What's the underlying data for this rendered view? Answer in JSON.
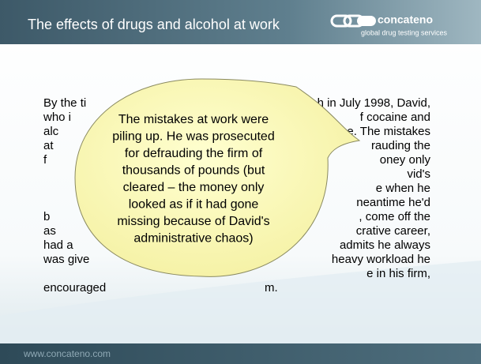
{
  "header": {
    "title": "The effects of drugs and alcohol at work",
    "logo": {
      "name": "concateno",
      "tagline": "global drug testing services"
    }
  },
  "body": {
    "lines": [
      {
        "left": "By the ti",
        "right": "h in July 1998, David,"
      },
      {
        "left": "who i",
        "right": "f cocaine and"
      },
      {
        "left": "alc",
        "right": "e. The mistakes"
      },
      {
        "left": "at",
        "right": "rauding the"
      },
      {
        "left": "f",
        "right": "oney only"
      },
      {
        "left": null,
        "right": "vid's"
      },
      {
        "left": null,
        "right": "e when he"
      },
      {
        "left": null,
        "right": "neantime he'd"
      },
      {
        "left": "b",
        "right": ", come off the"
      },
      {
        "left": "as",
        "right": "crative career,"
      },
      {
        "left": "had a",
        "right": "admits he always"
      },
      {
        "left": "was give",
        "right": "heavy workload he"
      },
      {
        "left": null,
        "right": "e in his firm,"
      },
      {
        "left": "encouraged",
        "right": "m."
      }
    ]
  },
  "callout": {
    "lines": [
      "The mistakes at work were",
      "piling up. He was prosecuted",
      "for defrauding the firm of",
      "thousands of pounds (but",
      "cleared – the money only",
      "looked as if it had gone",
      "missing because of David's",
      "administrative chaos)"
    ]
  },
  "footer": {
    "url": "www.concateno.com"
  }
}
